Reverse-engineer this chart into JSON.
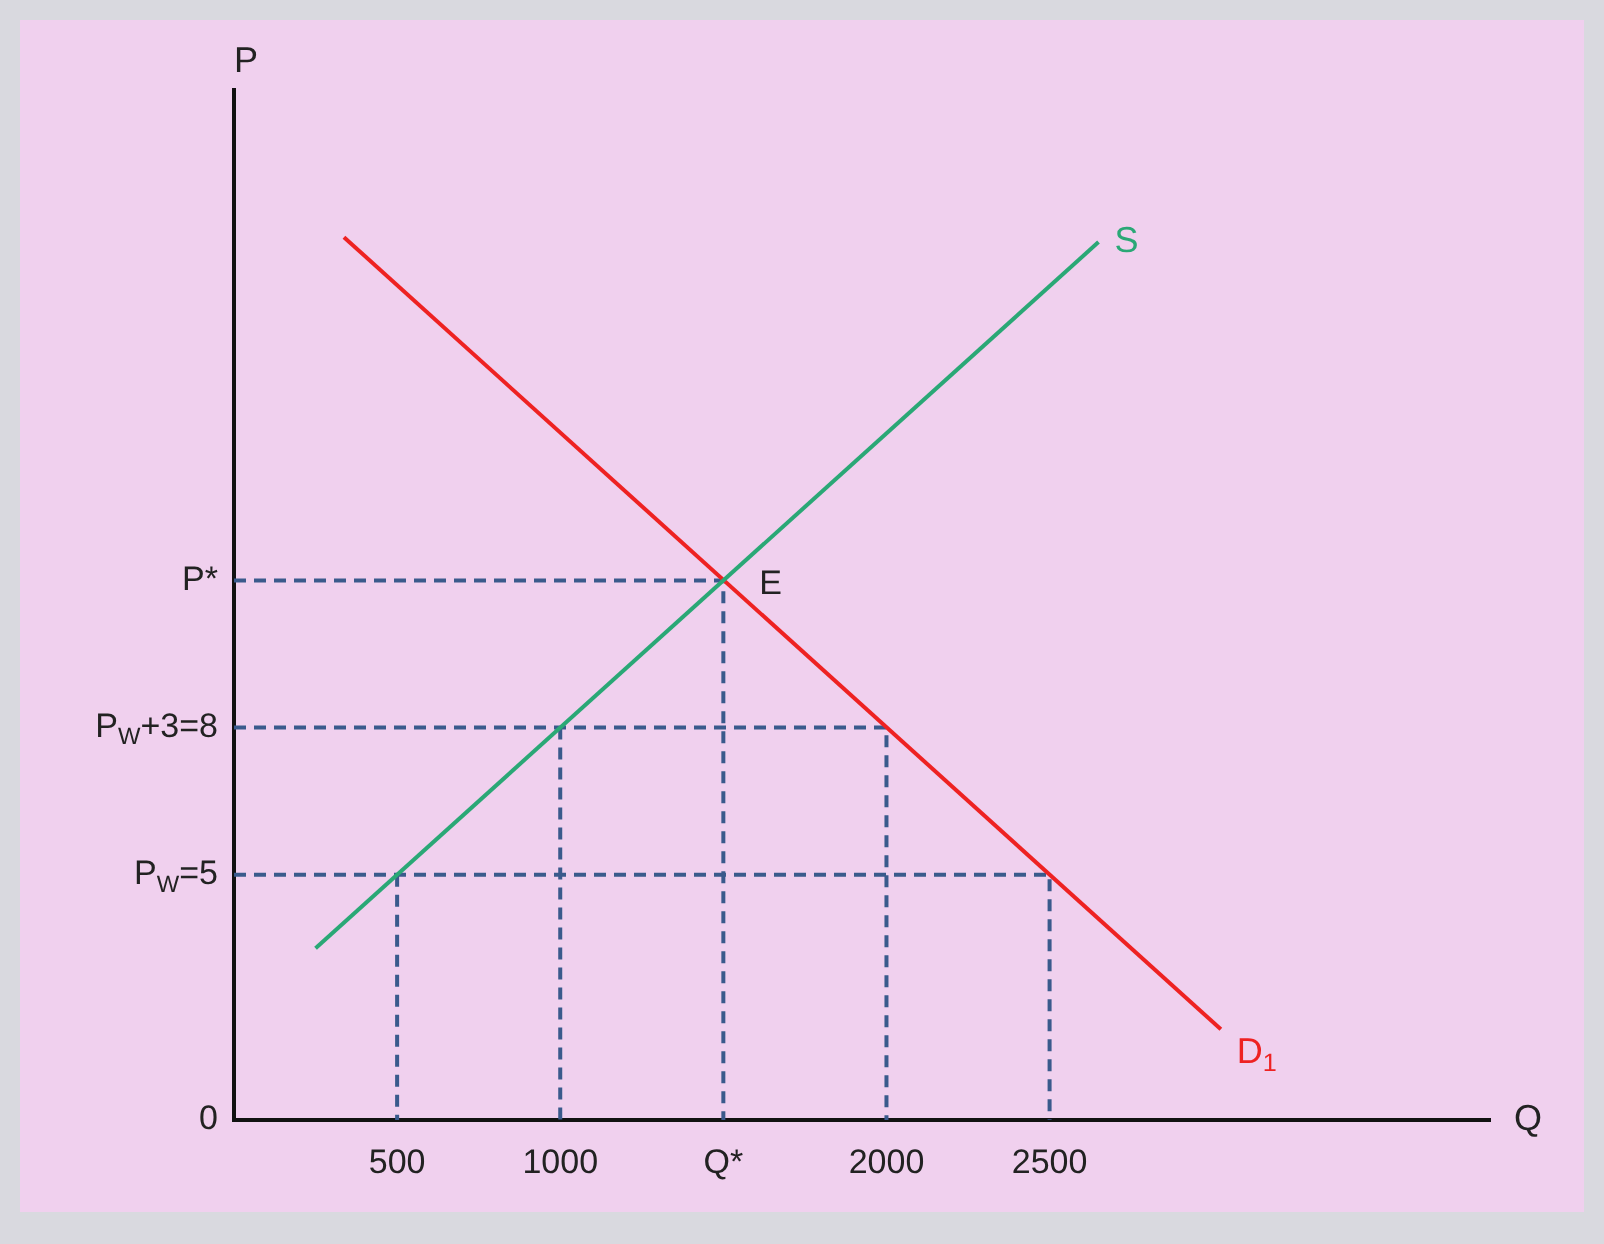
{
  "chart_data": {
    "type": "line",
    "xlabel": "Q",
    "ylabel": "P",
    "xlim": [
      0,
      3850
    ],
    "ylim": [
      0,
      21
    ],
    "xticks": [
      500,
      1000,
      {
        "value": 1500,
        "label": "Q*"
      },
      2000,
      2500
    ],
    "yticks": [
      0,
      {
        "value": 5,
        "label": "P$_{W}$=5"
      },
      {
        "value": 8,
        "label": "P$_{W}$+3=8"
      },
      {
        "value": 11,
        "label": "P*"
      }
    ],
    "grid": false,
    "legend": false,
    "series": [
      {
        "name": "S",
        "color": "#2aa876",
        "x": [
          250,
          2650
        ],
        "values": [
          3.5,
          17.9
        ]
      },
      {
        "name": "D$_{1}$",
        "color": "#ee2222",
        "x": [
          337,
          3025
        ],
        "values": [
          18,
          1.85
        ]
      },
      {
        "color": "#3a5a8c",
        "line_style": "dashed",
        "x": [
          0,
          1500,
          1500,
          null,
          0,
          2000,
          2000,
          null,
          1000,
          1000,
          null,
          0,
          2500,
          2500,
          null,
          500,
          500
        ],
        "values": [
          11,
          11,
          0,
          null,
          8,
          8,
          0,
          null,
          8,
          0,
          null,
          5,
          5,
          0,
          null,
          5,
          0
        ]
      }
    ],
    "annotations": [
      {
        "text": "E",
        "x": 1500,
        "y": 11
      }
    ]
  }
}
